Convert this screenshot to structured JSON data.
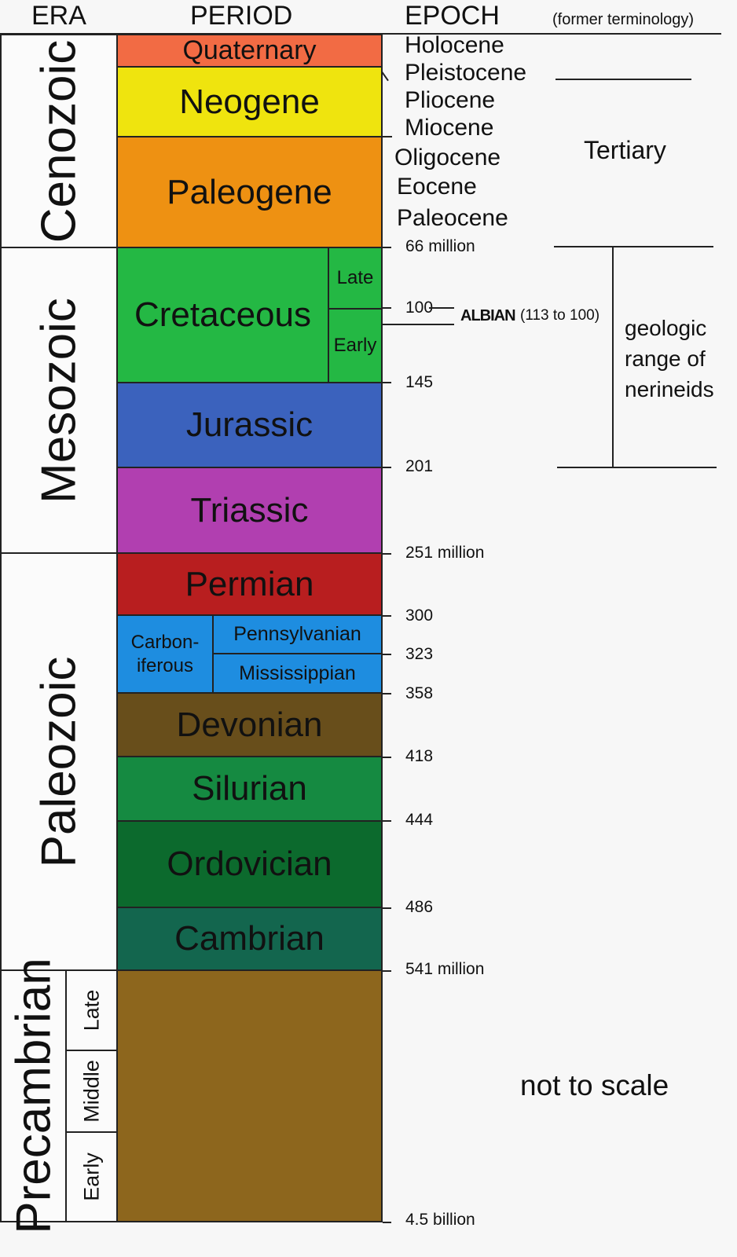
{
  "headers": {
    "era": "ERA",
    "period": "PERIOD",
    "epoch": "EPOCH",
    "former_terminology": "(former terminology)"
  },
  "eras": {
    "cenozoic": "Cenozoic",
    "mesozoic": "Mesozoic",
    "paleozoic": "Paleozoic",
    "precambrian": "Precambrian",
    "precambrian_subdivisions": [
      "Late",
      "Middle",
      "Early"
    ]
  },
  "periods": {
    "quaternary": "Quaternary",
    "neogene": "Neogene",
    "paleogene": "Paleogene",
    "cretaceous": "Cretaceous",
    "cretaceous_late": "Late",
    "cretaceous_early": "Early",
    "jurassic": "Jurassic",
    "triassic": "Triassic",
    "permian": "Permian",
    "carboniferous": "Carbon-\niferous",
    "pennsylvanian": "Pennsylvanian",
    "mississippian": "Mississippian",
    "devonian": "Devonian",
    "silurian": "Silurian",
    "ordovician": "Ordovician",
    "cambrian": "Cambrian"
  },
  "epochs": [
    "Holocene",
    "Pleistocene",
    "Pliocene",
    "Miocene",
    "Oligocene",
    "Eocene",
    "Paleocene"
  ],
  "ages": {
    "a66": "66 million",
    "a100": "100",
    "a145": "145",
    "a201": "201",
    "a251": "251 million",
    "a300": "300",
    "a323": "323",
    "a358": "358",
    "a418": "418",
    "a444": "444",
    "a486": "486",
    "a541": "541 million",
    "a4500": "4.5 billion"
  },
  "annotations": {
    "albian": "ALBIAN",
    "albian_range": "(113 to 100)",
    "tertiary": "Tertiary",
    "nerineids": "geologic\nrange of\nnerineids",
    "not_to_scale": "not to scale"
  },
  "colors": {
    "quaternary": "#f26b44",
    "neogene": "#efe40e",
    "paleogene": "#ee9112",
    "cretaceous": "#24b844",
    "jurassic": "#3b62bd",
    "triassic": "#b13fb0",
    "permian": "#b81e1f",
    "carboniferous": "#1e8de0",
    "devonian": "#684e1b",
    "silurian": "#158a41",
    "ordovician": "#0c6a2d",
    "cambrian": "#13664e",
    "precambrian": "#8d661d"
  }
}
